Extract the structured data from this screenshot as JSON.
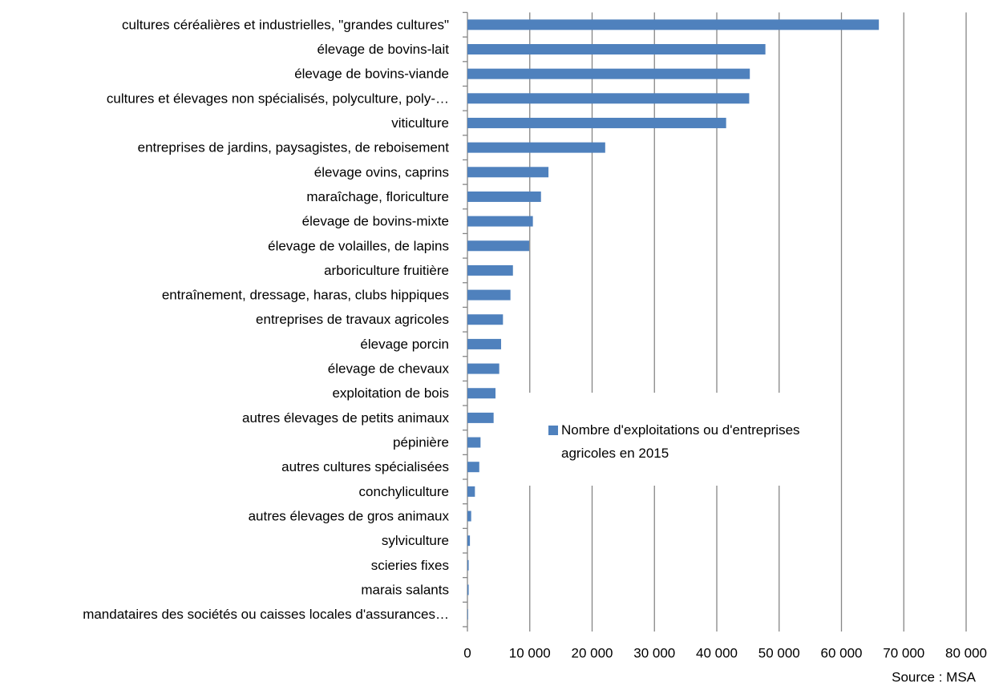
{
  "chart_data": {
    "type": "bar",
    "orientation": "horizontal",
    "categories": [
      "cultures céréalières et industrielles, \"grandes cultures\"",
      "élevage de bovins-lait",
      "élevage de bovins-viande",
      "cultures et élevages non spécialisés, polyculture, poly-…",
      "viticulture",
      "entreprises de jardins, paysagistes, de reboisement",
      "élevage ovins, caprins",
      "maraîchage, floriculture",
      "élevage de bovins-mixte",
      "élevage de volailles, de lapins",
      "arboriculture fruitière",
      "entraînement, dressage, haras, clubs hippiques",
      "entreprises de travaux agricoles",
      "élevage porcin",
      "élevage de chevaux",
      "exploitation de bois",
      "autres élevages de petits animaux",
      "pépinière",
      "autres cultures spécialisées",
      "conchyliculture",
      "autres élevages de gros animaux",
      "sylviculture",
      "scieries fixes",
      "marais salants",
      "mandataires des sociétés ou caisses locales d'assurances…"
    ],
    "series": [
      {
        "name": "Nombre d'exploitations ou d'entreprises agricoles en 2015",
        "color": "#4f81bd",
        "values": [
          66000,
          47800,
          45300,
          45200,
          41500,
          22100,
          13000,
          11800,
          10500,
          9900,
          7300,
          6900,
          5700,
          5400,
          5100,
          4500,
          4200,
          2100,
          1900,
          1200,
          600,
          400,
          200,
          200,
          100
        ]
      }
    ],
    "xlim": [
      0,
      80000
    ],
    "xticks": [
      0,
      {
        "value": 10000,
        "label": "10 000"
      },
      {
        "value": 20000,
        "label": "20 000"
      },
      {
        "value": 30000,
        "label": "30 000"
      },
      {
        "value": 40000,
        "label": "40 000"
      },
      {
        "value": 50000,
        "label": "50 000"
      },
      {
        "value": 60000,
        "label": "60 000"
      },
      {
        "value": 70000,
        "label": "70 000"
      },
      {
        "value": 80000,
        "label": "80 000"
      }
    ],
    "grid": true,
    "legend": "center",
    "annotation": "Source : MSA"
  }
}
